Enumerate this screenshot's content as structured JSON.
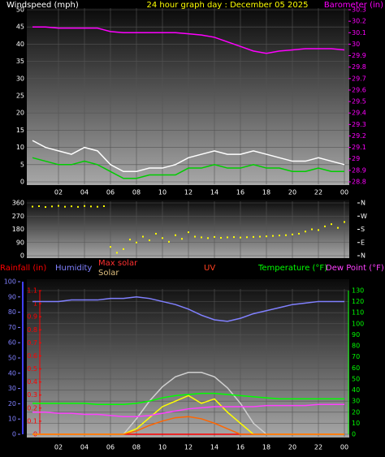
{
  "chart_data": [
    {
      "type": "line",
      "title": "24 hour graph day : December 05 2025",
      "ylabel": "Windspeed (mph)",
      "y2label": "Barometer (in)",
      "x": [
        0,
        1,
        2,
        3,
        4,
        5,
        6,
        7,
        8,
        9,
        10,
        11,
        12,
        13,
        14,
        15,
        16,
        17,
        18,
        19,
        20,
        21,
        22,
        23,
        24
      ],
      "xlim": [
        0,
        24
      ],
      "xticks": [
        {
          "value": 2,
          "label": "02"
        },
        {
          "value": 4,
          "label": "04"
        },
        {
          "value": 6,
          "label": "06"
        },
        {
          "value": 8,
          "label": "08"
        },
        10,
        12,
        14,
        16,
        18,
        20,
        22,
        {
          "value": 24,
          "label": "00"
        }
      ],
      "ylim": [
        0,
        50
      ],
      "yticks": [
        0,
        5,
        10,
        15,
        20,
        25,
        30,
        35,
        40,
        45,
        50
      ],
      "y2lim": [
        28.8,
        30.3
      ],
      "y2ticks": [
        28.8,
        28.9,
        29,
        29.1,
        29.2,
        29.3,
        29.4,
        29.5,
        29.6,
        29.7,
        29.8,
        29.9,
        30,
        30.1,
        30.2,
        30.3
      ],
      "grid": true,
      "series": [
        {
          "color": "#ffffff",
          "values": [
            12,
            10,
            9,
            8,
            10,
            9,
            5,
            3,
            3,
            4,
            4,
            5,
            7,
            8,
            9,
            8,
            8,
            9,
            8,
            7,
            6,
            6,
            7,
            6,
            5
          ]
        },
        {
          "color": "#00cc00",
          "values": [
            7,
            6,
            5,
            5,
            6,
            5,
            3,
            1,
            1,
            2,
            2,
            2,
            4,
            4,
            5,
            4,
            4,
            5,
            4,
            4,
            3,
            3,
            4,
            3,
            3
          ]
        },
        {
          "color": "#ff00ff",
          "axis": "y2",
          "values": [
            30.15,
            30.15,
            30.14,
            30.14,
            30.14,
            30.14,
            30.11,
            30.1,
            30.1,
            30.1,
            30.1,
            30.1,
            30.09,
            30.08,
            30.06,
            30.02,
            29.98,
            29.94,
            29.92,
            29.94,
            29.95,
            29.96,
            29.96,
            29.96,
            29.95
          ]
        }
      ]
    },
    {
      "type": "scatter",
      "x": [
        0,
        0.5,
        1,
        1.5,
        2,
        2.5,
        3,
        3.5,
        4,
        4.5,
        5,
        5.5,
        6,
        6.5,
        7,
        7.5,
        8,
        8.5,
        9,
        9.5,
        10,
        10.5,
        11,
        11.5,
        12,
        12.5,
        13,
        13.5,
        14,
        14.5,
        15,
        15.5,
        16,
        16.5,
        17,
        17.5,
        18,
        18.5,
        19,
        19.5,
        20,
        20.5,
        21,
        21.5,
        22,
        22.5,
        23,
        23.5,
        24
      ],
      "xlim": [
        0,
        24
      ],
      "ylim": [
        0,
        360
      ],
      "yticks": [
        0,
        90,
        180,
        270,
        360
      ],
      "y2ticks": [
        {
          "value": 360,
          "label": "N"
        },
        {
          "value": 270,
          "label": "W"
        },
        {
          "value": 180,
          "label": "S"
        },
        {
          "value": 90,
          "label": "E"
        },
        {
          "value": 0,
          "label": "N"
        }
      ],
      "grid": true,
      "color": "#ffff00",
      "values": [
        335,
        338,
        332,
        336,
        340,
        334,
        337,
        333,
        339,
        336,
        334,
        338,
        60,
        20,
        45,
        110,
        90,
        130,
        105,
        150,
        120,
        95,
        140,
        115,
        160,
        130,
        125,
        120,
        128,
        122,
        125,
        127,
        124,
        126,
        128,
        130,
        132,
        135,
        138,
        140,
        145,
        150,
        165,
        180,
        175,
        200,
        215,
        190,
        230
      ]
    },
    {
      "type": "line",
      "x": [
        0,
        1,
        2,
        3,
        4,
        5,
        6,
        7,
        8,
        9,
        10,
        11,
        12,
        13,
        14,
        15,
        16,
        17,
        18,
        19,
        20,
        21,
        22,
        23,
        24
      ],
      "xlim": [
        0,
        24
      ],
      "xticks": [
        {
          "value": 2,
          "label": "02"
        },
        {
          "value": 4,
          "label": "04"
        },
        {
          "value": 6,
          "label": "06"
        },
        {
          "value": 8,
          "label": "08"
        },
        10,
        12,
        14,
        16,
        18,
        20,
        22,
        {
          "value": 24,
          "label": "00"
        }
      ],
      "ylim": [
        0,
        100
      ],
      "yticks": [
        0,
        10,
        20,
        30,
        40,
        50,
        60,
        70,
        80,
        90,
        100
      ],
      "rain_ylim": [
        0,
        1.1
      ],
      "rain_yticks": [
        0,
        0.1,
        0.2,
        0.3,
        0.4,
        0.5,
        0.6,
        0.7,
        0.8,
        0.9,
        1,
        1.1
      ],
      "y2lim": [
        0,
        130
      ],
      "y2ticks": [
        0,
        10,
        20,
        30,
        40,
        50,
        60,
        70,
        80,
        90,
        100,
        110,
        120,
        130
      ],
      "grid": true,
      "series": [
        {
          "name": "Rainfall (in)",
          "color": "#ff0000",
          "axis": "rain",
          "values": [
            0,
            0,
            0,
            0,
            0,
            0,
            0,
            0,
            0,
            0,
            0,
            0,
            0,
            0,
            0,
            0,
            0,
            0,
            0,
            0,
            0,
            0,
            0,
            0,
            0
          ]
        },
        {
          "name": "Humidity",
          "color": "#8080ff",
          "values": [
            87,
            87,
            87,
            88,
            88,
            88,
            89,
            89,
            90,
            89,
            87,
            85,
            82,
            78,
            75,
            74,
            76,
            79,
            81,
            83,
            85,
            86,
            87,
            87,
            87
          ]
        },
        {
          "name": "Max solar",
          "color": "#d0d0d0",
          "axis": "y2",
          "values": [
            0,
            0,
            0,
            0,
            0,
            0,
            0,
            0,
            14,
            30,
            43,
            52,
            56,
            56,
            52,
            42,
            28,
            10,
            0,
            0,
            0,
            0,
            0,
            0,
            0
          ]
        },
        {
          "name": "Solar",
          "color": "#ffff00",
          "axis": "y2",
          "values": [
            0,
            0,
            0,
            0,
            0,
            0,
            0,
            0,
            5,
            15,
            25,
            30,
            35,
            28,
            32,
            20,
            10,
            0,
            0,
            0,
            0,
            0,
            0,
            0,
            0
          ]
        },
        {
          "name": "UV",
          "color": "#ff6600",
          "axis": "y2",
          "values": [
            0,
            0,
            0,
            0,
            0,
            0,
            0,
            0,
            3,
            8,
            12,
            15,
            16,
            14,
            10,
            5,
            0,
            0,
            0,
            0,
            0,
            0,
            0,
            0,
            0
          ]
        },
        {
          "name": "Temperature (°F)",
          "color": "#00ff00",
          "axis": "y2",
          "values": [
            28,
            28,
            28,
            28,
            28,
            27,
            27,
            27,
            28,
            30,
            33,
            35,
            36,
            37,
            37,
            36,
            35,
            34,
            33,
            32,
            32,
            32,
            32,
            32,
            32
          ]
        },
        {
          "name": "Dew Point (°F)",
          "color": "#ff40ff",
          "axis": "y2",
          "values": [
            20,
            20,
            19,
            19,
            18,
            18,
            17,
            16,
            16,
            17,
            19,
            21,
            23,
            24,
            25,
            25,
            25,
            25,
            26,
            26,
            26,
            26,
            27,
            27,
            27
          ]
        }
      ]
    }
  ]
}
